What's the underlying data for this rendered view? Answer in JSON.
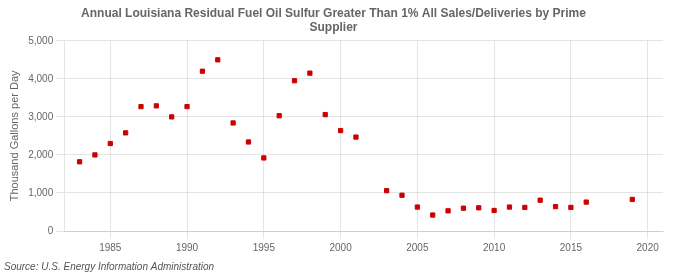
{
  "chart_data": {
    "type": "scatter",
    "title": "Annual Louisiana Residual Fuel Oil Sulfur Greater Than 1% All Sales/Deliveries by Prime\nSupplier",
    "ylabel": "Thousand Gallons per Day",
    "source": "Source: U.S. Energy Information Administration",
    "x": [
      1983,
      1984,
      1985,
      1986,
      1987,
      1988,
      1989,
      1990,
      1991,
      1992,
      1993,
      1994,
      1995,
      1996,
      1997,
      1998,
      1999,
      2000,
      2001,
      2003,
      2004,
      2005,
      2006,
      2007,
      2008,
      2009,
      2010,
      2011,
      2012,
      2013,
      2014,
      2015,
      2016,
      2019
    ],
    "values": [
      1820,
      2000,
      2300,
      2580,
      3270,
      3290,
      3000,
      3270,
      4200,
      4500,
      2840,
      2340,
      1920,
      3030,
      3950,
      4150,
      3060,
      2640,
      2470,
      1060,
      940,
      630,
      420,
      530,
      600,
      610,
      540,
      630,
      620,
      810,
      640,
      620,
      760,
      830
    ],
    "color": "#cc0000",
    "marker": "square",
    "xlim": [
      1982,
      2021
    ],
    "xticks": [
      1985,
      1990,
      1995,
      2000,
      2005,
      2010,
      2015,
      2020
    ],
    "ylim": [
      0,
      5000
    ],
    "yticks": [
      0,
      {
        "value": 1000,
        "label": "1,000"
      },
      {
        "value": 2000,
        "label": "2,000"
      },
      {
        "value": 3000,
        "label": "3,000"
      },
      {
        "value": 4000,
        "label": "4,000"
      },
      {
        "value": 5000,
        "label": "5,000"
      }
    ],
    "grid": true
  }
}
